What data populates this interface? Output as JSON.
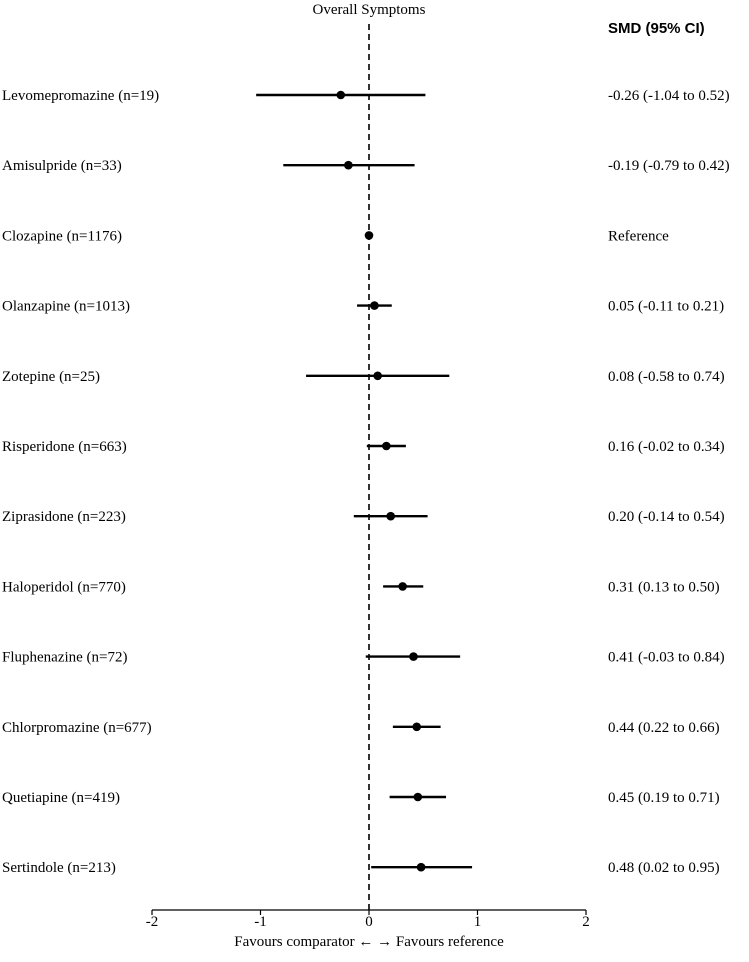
{
  "chart_data": {
    "type": "forest",
    "title": "Overall Symptoms",
    "column_header": "SMD (95% CI)",
    "xlabel": "Favours comparator ←  → Favours reference",
    "xlim": [
      -2,
      2
    ],
    "xticks": [
      -2,
      -1,
      0,
      1,
      2
    ],
    "xtick_labels": [
      "-2",
      "-1",
      "0",
      "1",
      "2"
    ],
    "reference_line": 0,
    "rows": [
      {
        "label": "Levomepromazine (n=19)",
        "est": -0.26,
        "lo": -1.04,
        "hi": 0.52,
        "ci_text": "-0.26 (-1.04 to 0.52)"
      },
      {
        "label": "Amisulpride (n=33)",
        "est": -0.19,
        "lo": -0.79,
        "hi": 0.42,
        "ci_text": "-0.19 (-0.79 to 0.42)"
      },
      {
        "label": "Clozapine (n=1176)",
        "est": 0,
        "lo": 0,
        "hi": 0,
        "ci_text": "Reference"
      },
      {
        "label": "Olanzapine (n=1013)",
        "est": 0.05,
        "lo": -0.11,
        "hi": 0.21,
        "ci_text": "0.05 (-0.11 to 0.21)"
      },
      {
        "label": "Zotepine (n=25)",
        "est": 0.08,
        "lo": -0.58,
        "hi": 0.74,
        "ci_text": "0.08 (-0.58 to 0.74)"
      },
      {
        "label": "Risperidone (n=663)",
        "est": 0.16,
        "lo": -0.02,
        "hi": 0.34,
        "ci_text": "0.16 (-0.02 to 0.34)"
      },
      {
        "label": "Ziprasidone (n=223)",
        "est": 0.2,
        "lo": -0.14,
        "hi": 0.54,
        "ci_text": "0.20 (-0.14 to 0.54)"
      },
      {
        "label": "Haloperidol (n=770)",
        "est": 0.31,
        "lo": 0.13,
        "hi": 0.5,
        "ci_text": "0.31 (0.13 to 0.50)"
      },
      {
        "label": "Fluphenazine (n=72)",
        "est": 0.41,
        "lo": -0.03,
        "hi": 0.84,
        "ci_text": "0.41 (-0.03 to 0.84)"
      },
      {
        "label": "Chlorpromazine (n=677)",
        "est": 0.44,
        "lo": 0.22,
        "hi": 0.66,
        "ci_text": "0.44 (0.22 to 0.66)"
      },
      {
        "label": "Quetiapine (n=419)",
        "est": 0.45,
        "lo": 0.19,
        "hi": 0.71,
        "ci_text": "0.45 (0.19 to 0.71)"
      },
      {
        "label": "Sertindole (n=213)",
        "est": 0.48,
        "lo": 0.02,
        "hi": 0.95,
        "ci_text": "0.48 (0.02 to 0.95)"
      }
    ]
  }
}
